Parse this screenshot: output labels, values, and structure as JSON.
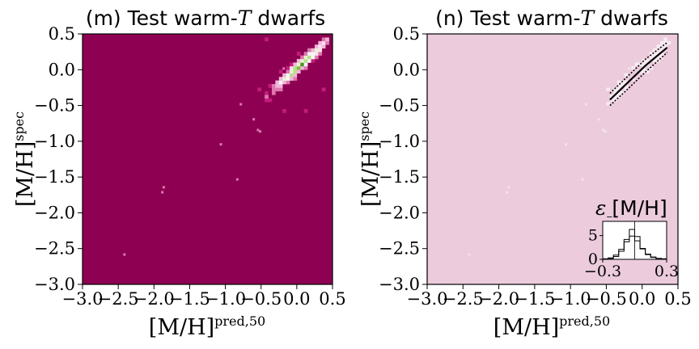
{
  "chart_data": [
    {
      "type": "heatmap",
      "panel": "m",
      "title_prefix": "(m) Test warm-",
      "title_var": "T",
      "title_suffix": " dwarfs",
      "xlabel_base": "[M/H]",
      "xlabel_sup": "pred,50",
      "ylabel_base": "[M/H]",
      "ylabel_sup": "spec",
      "xlim": [
        -3.0,
        0.5
      ],
      "ylim": [
        -3.0,
        0.5
      ],
      "xticks": [
        "−3.0",
        "−2.5",
        "−2.0",
        "−1.5",
        "−1.0",
        "−0.5",
        "0.0",
        "0.5"
      ],
      "yticks": [
        "−3.0",
        "−2.5",
        "−2.0",
        "−1.5",
        "−1.0",
        "−0.5",
        "0.0",
        "0.5"
      ],
      "background_color": "#8e0152",
      "colormap": [
        "#8e0152",
        "#c51b7d",
        "#de77ae",
        "#f1b6da",
        "#fde0ef",
        "#f7f7f7",
        "#e6f5d0",
        "#b8e186",
        "#7fbc41",
        "#4d9221"
      ],
      "outliers": [
        {
          "x": -2.43,
          "y": -2.6
        },
        {
          "x": -1.88,
          "y": -1.66
        },
        {
          "x": -1.9,
          "y": -1.73
        },
        {
          "x": -1.08,
          "y": -1.06
        },
        {
          "x": -0.85,
          "y": -1.55
        },
        {
          "x": -0.62,
          "y": -0.71
        },
        {
          "x": -0.56,
          "y": -0.86
        },
        {
          "x": -0.53,
          "y": -0.88
        },
        {
          "x": -0.2,
          "y": 0.0
        },
        {
          "x": -0.8,
          "y": -0.5
        }
      ],
      "ridge": {
        "x_start": -0.45,
        "x_end": 0.4,
        "slope": 0.88,
        "intercept": 0.02
      }
    },
    {
      "type": "heatmap",
      "panel": "n",
      "title_prefix": "(n) Test warm-",
      "title_var": "T",
      "title_suffix": " dwarfs",
      "xlabel_base": "[M/H]",
      "xlabel_sup": "pred,50",
      "ylabel_base": "[M/H]",
      "ylabel_sup": "spec",
      "xlim": [
        -3.0,
        0.5
      ],
      "ylim": [
        -3.0,
        0.5
      ],
      "xticks": [
        "−3.0",
        "−2.5",
        "−2.0",
        "−1.5",
        "−1.0",
        "−0.5",
        "0.0",
        "0.5"
      ],
      "yticks": [
        "−3.0",
        "−2.5",
        "−2.0",
        "−1.5",
        "−1.0",
        "−0.5",
        "0.0",
        "0.5"
      ],
      "background_color": "#ebcbdc",
      "median_line": [
        [
          -0.45,
          -0.42
        ],
        [
          -0.2,
          -0.18
        ],
        [
          0.05,
          0.06
        ],
        [
          0.35,
          0.31
        ]
      ],
      "lower_line": [
        [
          -0.45,
          -0.5
        ],
        [
          -0.2,
          -0.27
        ],
        [
          0.05,
          -0.03
        ],
        [
          0.35,
          0.24
        ]
      ],
      "upper_line": [
        [
          -0.45,
          -0.33
        ],
        [
          -0.2,
          -0.09
        ],
        [
          0.05,
          0.15
        ],
        [
          0.35,
          0.38
        ]
      ],
      "inset": {
        "title_prefix": "ε",
        "title_sub": "[M/H]",
        "xlim": [
          -0.3,
          0.3
        ],
        "ylim": [
          0,
          8
        ],
        "xticks": [
          "−0.3",
          "0.3"
        ],
        "yticks": [
          "0",
          "5"
        ],
        "bin_edges": [
          -0.3,
          -0.25,
          -0.2,
          -0.15,
          -0.1,
          -0.05,
          0.0,
          0.05,
          0.1,
          0.15,
          0.2,
          0.25,
          0.3
        ],
        "step_a": [
          0.1,
          0.2,
          0.6,
          1.7,
          4.2,
          6.3,
          4.8,
          2.3,
          1.0,
          0.4,
          0.2,
          0.1
        ],
        "step_b": [
          0.1,
          0.3,
          0.9,
          2.1,
          3.7,
          4.9,
          3.9,
          2.2,
          1.1,
          0.5,
          0.2,
          0.1
        ]
      }
    }
  ]
}
